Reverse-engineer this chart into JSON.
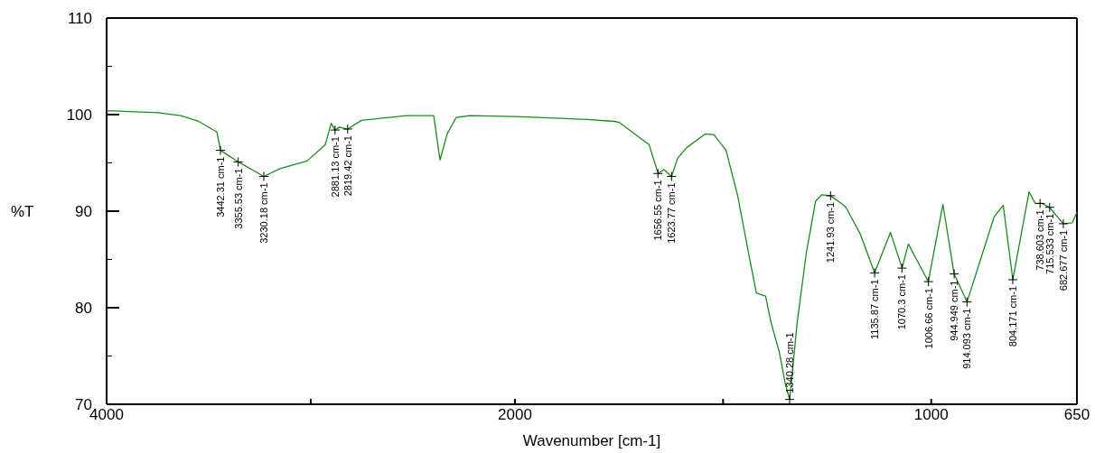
{
  "chart_data": [
    {
      "type": "line",
      "ylabel": "%T",
      "grid": false,
      "xlim": [
        4000,
        2000
      ],
      "xticks": [
        4000,
        {
          "value": 3000,
          "label": null
        },
        2000
      ],
      "ylim": [
        70,
        110
      ],
      "yticks": [
        70,
        {
          "value": 75,
          "label": null
        },
        80,
        {
          "value": 85,
          "label": null
        },
        90,
        {
          "value": 95,
          "label": null
        },
        100,
        {
          "value": 105,
          "label": null
        },
        110
      ],
      "series": [
        {
          "color": "#1a8c1a",
          "x": [
            4000,
            3858,
            3748,
            3637,
            3549,
            3460,
            3442,
            3355,
            3230,
            3151,
            3018,
            2929,
            2900,
            2881,
            2860,
            2819,
            2752,
            2531,
            2398,
            2367,
            2332,
            2288,
            2221,
            2000
          ],
          "values": [
            100.4,
            100.3,
            100.2,
            99.9,
            99.3,
            98.2,
            96.3,
            95.1,
            93.6,
            94.4,
            95.2,
            96.9,
            99.1,
            98.4,
            98.7,
            98.5,
            99.4,
            99.9,
            99.9,
            95.3,
            98.0,
            99.7,
            99.9,
            99.8
          ]
        }
      ],
      "annotations": [
        {
          "text": "3442.31 cm-1",
          "x": 3442.31,
          "y": 96.3
        },
        {
          "text": "3355.53 cm-1",
          "x": 3355.53,
          "y": 95.1
        },
        {
          "text": "3230.18 cm-1",
          "x": 3230.18,
          "y": 93.6
        },
        {
          "text": "2881.13 cm-1",
          "x": 2881.13,
          "y": 98.4
        },
        {
          "text": "2819.42 cm-1",
          "x": 2819.42,
          "y": 98.5
        }
      ]
    },
    {
      "type": "line",
      "xlabel": "Wavenumber [cm-1]",
      "xlim": [
        2000,
        650
      ],
      "xticks": [
        {
          "value": 2000,
          "label": null
        },
        {
          "value": 1500,
          "label": null
        },
        1000,
        650
      ],
      "ylim": [
        70,
        110
      ],
      "tick_labels": "x",
      "series": [
        {
          "color": "#1a8c1a",
          "x": [
            2000,
            1826,
            1761,
            1750,
            1678,
            1656,
            1642,
            1624,
            1609,
            1587,
            1543,
            1522,
            1493,
            1465,
            1435,
            1420,
            1398,
            1385,
            1365,
            1350,
            1340,
            1322,
            1300,
            1278,
            1263,
            1242,
            1213,
            1205,
            1170,
            1136,
            1098,
            1070,
            1055,
            1007,
            972,
            945,
            914,
            849,
            827,
            804,
            765,
            750,
            734,
            716,
            683,
            661,
            650
          ],
          "values": [
            99.8,
            99.5,
            99.3,
            99.2,
            96.9,
            93.9,
            94.3,
            93.6,
            95.5,
            96.6,
            98.0,
            97.9,
            96.3,
            91.6,
            84.8,
            81.5,
            81.2,
            78.5,
            75.4,
            72.0,
            70.5,
            78.5,
            85.7,
            91.0,
            91.7,
            91.6,
            90.7,
            90.4,
            87.6,
            83.6,
            87.8,
            84.1,
            86.6,
            82.7,
            90.7,
            83.5,
            80.6,
            89.4,
            90.6,
            82.9,
            92.0,
            90.8,
            90.8,
            90.4,
            88.7,
            88.8,
            89.9
          ]
        }
      ],
      "annotations": [
        {
          "text": "1656.55 cm-1",
          "x": 1656.55,
          "y": 93.9
        },
        {
          "text": "1623.77 cm-1",
          "x": 1623.77,
          "y": 93.6
        },
        {
          "text": "1340.28 cm-1",
          "x": 1340.28,
          "y": 70.5
        },
        {
          "text": "1241.93 cm-1",
          "x": 1241.93,
          "y": 91.6
        },
        {
          "text": "1135.87 cm-1",
          "x": 1135.87,
          "y": 83.6
        },
        {
          "text": "1070.3 cm-1",
          "x": 1070.3,
          "y": 84.1
        },
        {
          "text": "1006.66 cm-1",
          "x": 1006.66,
          "y": 82.7
        },
        {
          "text": "944.949 cm-1",
          "x": 944.949,
          "y": 83.5
        },
        {
          "text": "914.093 cm-1",
          "x": 914.093,
          "y": 80.6
        },
        {
          "text": "804.171 cm-1",
          "x": 804.171,
          "y": 82.9
        },
        {
          "text": "738.603 cm-1",
          "x": 738.603,
          "y": 90.8
        },
        {
          "text": "715.533 cm-1",
          "x": 715.533,
          "y": 90.4
        },
        {
          "text": "682.677 cm-1",
          "x": 682.677,
          "y": 88.7
        }
      ]
    }
  ]
}
